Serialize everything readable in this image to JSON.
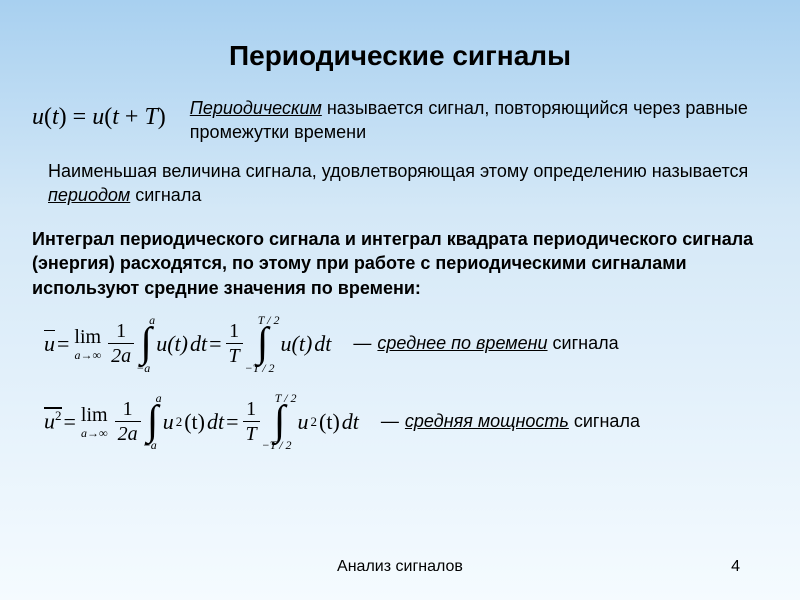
{
  "title": "Периодические сигналы",
  "eq_periodic": "u(t) = u(t + T)",
  "def_periodic_pre": "Периодическим",
  "def_periodic_rest": " называется сигнал, повторяющийся через равные промежутки времени",
  "period_text_a": "Наименьшая величина сигнала, удовлетворяющая этому определению называется ",
  "period_text_b": "периодом",
  "period_text_c": " сигнала",
  "integral_para": "Интеграл периодического сигнала и интеграл квадрата периодического сигнала (энергия) расходятся, по этому при работе с периодическими сигналами используют средние значения по времени:",
  "mean_label_a": "среднее по времени",
  "mean_label_b": " сигнала",
  "power_label_a": "средняя мощность",
  "power_label_b": " сигнала",
  "footer_text": "Анализ  сигналов",
  "page_number": "4",
  "math": {
    "lim_text": "lim",
    "lim_sub": "a→∞",
    "frac1_num": "1",
    "frac1_den": "2a",
    "int1_ub": "a",
    "int1_lb": "−a",
    "int2_ub": "T / 2",
    "int2_lb": "−T / 2",
    "fracT_num": "1",
    "fracT_den": "T",
    "ubar": "u",
    "u2bar": "u",
    "sq": "2",
    "u_of_t": "u(t)",
    "u2_of_t": "u",
    "dt": "dt",
    "eq": " = ",
    "paren_t": "(t)"
  }
}
